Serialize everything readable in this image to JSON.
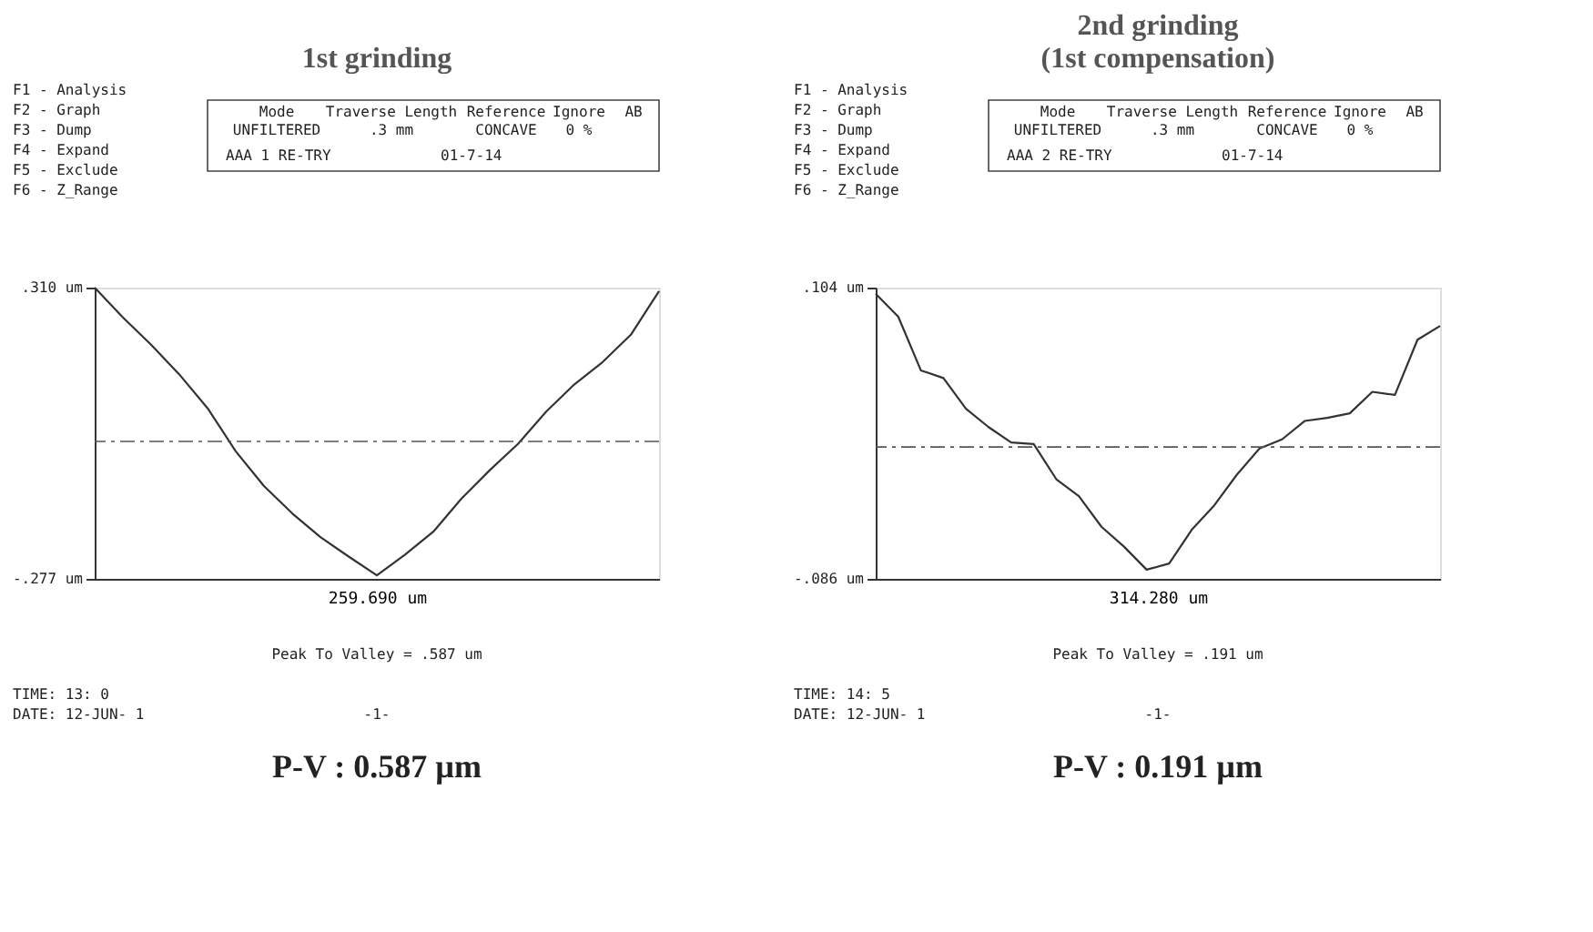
{
  "chart_data": [
    {
      "type": "line",
      "title": "1st grinding",
      "xlabel": "259.690 um",
      "ylim": [
        -0.277,
        0.31
      ],
      "line_style": "solid",
      "marker": "none",
      "categories": [
        null,
        null,
        null,
        null,
        null,
        null,
        null,
        null,
        null,
        null,
        null,
        null,
        null,
        null,
        null,
        null,
        null,
        null,
        null,
        null,
        null
      ],
      "yticks": [
        {
          "value": 0.31,
          "label": ".310 um"
        },
        {
          "value": -0.277,
          "label": "-.277 um"
        }
      ],
      "ref_lines": [
        {
          "axis": "y",
          "value": 0,
          "line_style": "dashed",
          "color": "#555555"
        }
      ],
      "series": [
        {
          "color": "#333333",
          "values": [
            0.31,
            0.25,
            0.195,
            0.135,
            0.067,
            -0.02,
            -0.09,
            -0.145,
            -0.193,
            -0.232,
            -0.27,
            -0.228,
            -0.182,
            -0.115,
            -0.058,
            -0.005,
            0.06,
            0.115,
            0.16,
            0.215,
            0.303
          ]
        }
      ],
      "annotations": [
        "F1 - Analysis",
        "F2 - Graph",
        "F3 - Dump",
        "F4 - Expand",
        "F5 - Exclude",
        "F6 - Z_Range",
        "Mode",
        "UNFILTERED",
        "Traverse Length",
        ".3 mm",
        "Reference",
        "CONCAVE",
        "Ignore",
        "0 %",
        "AB",
        "AAA 1  RE-TRY",
        "01-7-14",
        "Peak To Valley =    .587 um",
        "TIME: 13: 0",
        "DATE: 12-JUN- 1",
        "-1-",
        "P-V : 0.587 µm"
      ]
    },
    {
      "type": "line",
      "title": [
        "2nd grinding",
        "(1st compensation)"
      ],
      "xlabel": "314.280 um",
      "ylim": [
        -0.086,
        0.104
      ],
      "line_style": "solid",
      "marker": "none",
      "categories": [
        null,
        null,
        null,
        null,
        null,
        null,
        null,
        null,
        null,
        null,
        null,
        null,
        null,
        null,
        null,
        null,
        null,
        null,
        null,
        null,
        null,
        null,
        null,
        null,
        null,
        null
      ],
      "yticks": [
        {
          "value": 0.104,
          "label": ".104 um"
        },
        {
          "value": -0.086,
          "label": "-.086 um"
        }
      ],
      "ref_lines": [
        {
          "axis": "y",
          "value": 0,
          "line_style": "dashed",
          "color": "#555555"
        }
      ],
      "series": [
        {
          "color": "#333333",
          "values": [
            0.1,
            0.085,
            0.05,
            0.045,
            0.025,
            0.013,
            0.003,
            0.002,
            -0.021,
            -0.032,
            -0.052,
            -0.065,
            -0.08,
            -0.076,
            -0.054,
            -0.038,
            -0.018,
            -0.001,
            0.005,
            0.017,
            0.019,
            0.022,
            0.036,
            0.034,
            0.07,
            0.079
          ]
        }
      ],
      "annotations": [
        "F1 - Analysis",
        "F2 - Graph",
        "F3 - Dump",
        "F4 - Expand",
        "F5 - Exclude",
        "F6 - Z_Range",
        "Mode",
        "UNFILTERED",
        "Traverse Length",
        ".3 mm",
        "Reference",
        "CONCAVE",
        "Ignore",
        "0 %",
        "AB",
        "AAA 2  RE-TRY",
        "01-7-14",
        "Peak To Valley =    .191 um",
        "TIME: 14: 5",
        "DATE: 12-JUN- 1",
        "-1-",
        "P-V : 0.191 µm"
      ]
    }
  ]
}
